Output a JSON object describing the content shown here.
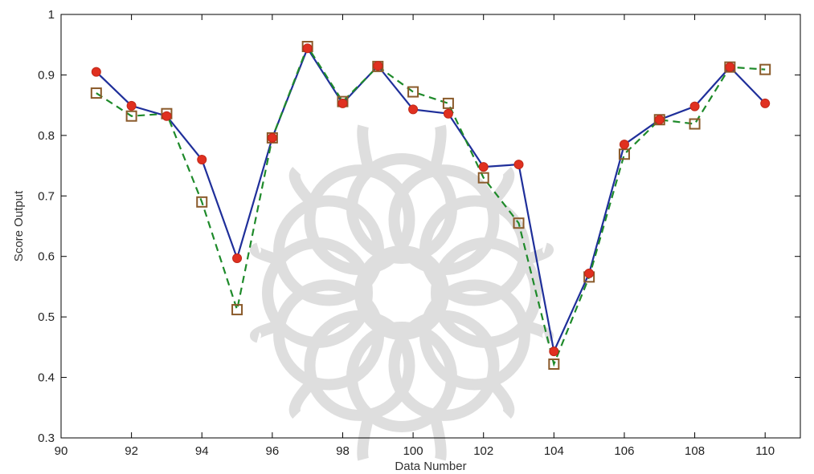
{
  "chart_data": {
    "type": "line",
    "title": "",
    "xlabel": "Data Number",
    "ylabel": "Score Output",
    "xlim": [
      90,
      111
    ],
    "ylim": [
      0.3,
      1.0
    ],
    "xticks": [
      90,
      92,
      94,
      96,
      98,
      100,
      102,
      104,
      106,
      108,
      110
    ],
    "yticks": [
      0.3,
      0.4,
      0.5,
      0.6,
      0.7,
      0.8,
      0.9,
      1.0
    ],
    "ytick_labels": [
      "0.3",
      "0.4",
      "0.5",
      "0.6",
      "0.7",
      "0.8",
      "0.9",
      "1"
    ],
    "grid": false,
    "legend": "none",
    "x": [
      91,
      92,
      93,
      94,
      95,
      96,
      97,
      98,
      99,
      100,
      101,
      102,
      103,
      104,
      105,
      106,
      107,
      108,
      109,
      110
    ],
    "series": [
      {
        "style": "solid line, filled circle markers",
        "line_color": "#1f2f9a",
        "marker_color": "#e03020",
        "values": [
          0.905,
          0.849,
          0.832,
          0.76,
          0.597,
          0.796,
          0.944,
          0.853,
          0.915,
          0.843,
          0.836,
          0.748,
          0.752,
          0.443,
          0.572,
          0.785,
          0.826,
          0.848,
          0.913,
          0.853
        ]
      },
      {
        "style": "dashed line, open square markers",
        "line_color": "#1e8a2a",
        "marker_color": "#8a5a2a",
        "values": [
          0.87,
          0.832,
          0.836,
          0.69,
          0.512,
          0.796,
          0.947,
          0.856,
          0.914,
          0.872,
          0.853,
          0.73,
          0.655,
          0.422,
          0.566,
          0.769,
          0.826,
          0.819,
          0.913,
          0.909
        ]
      }
    ]
  }
}
